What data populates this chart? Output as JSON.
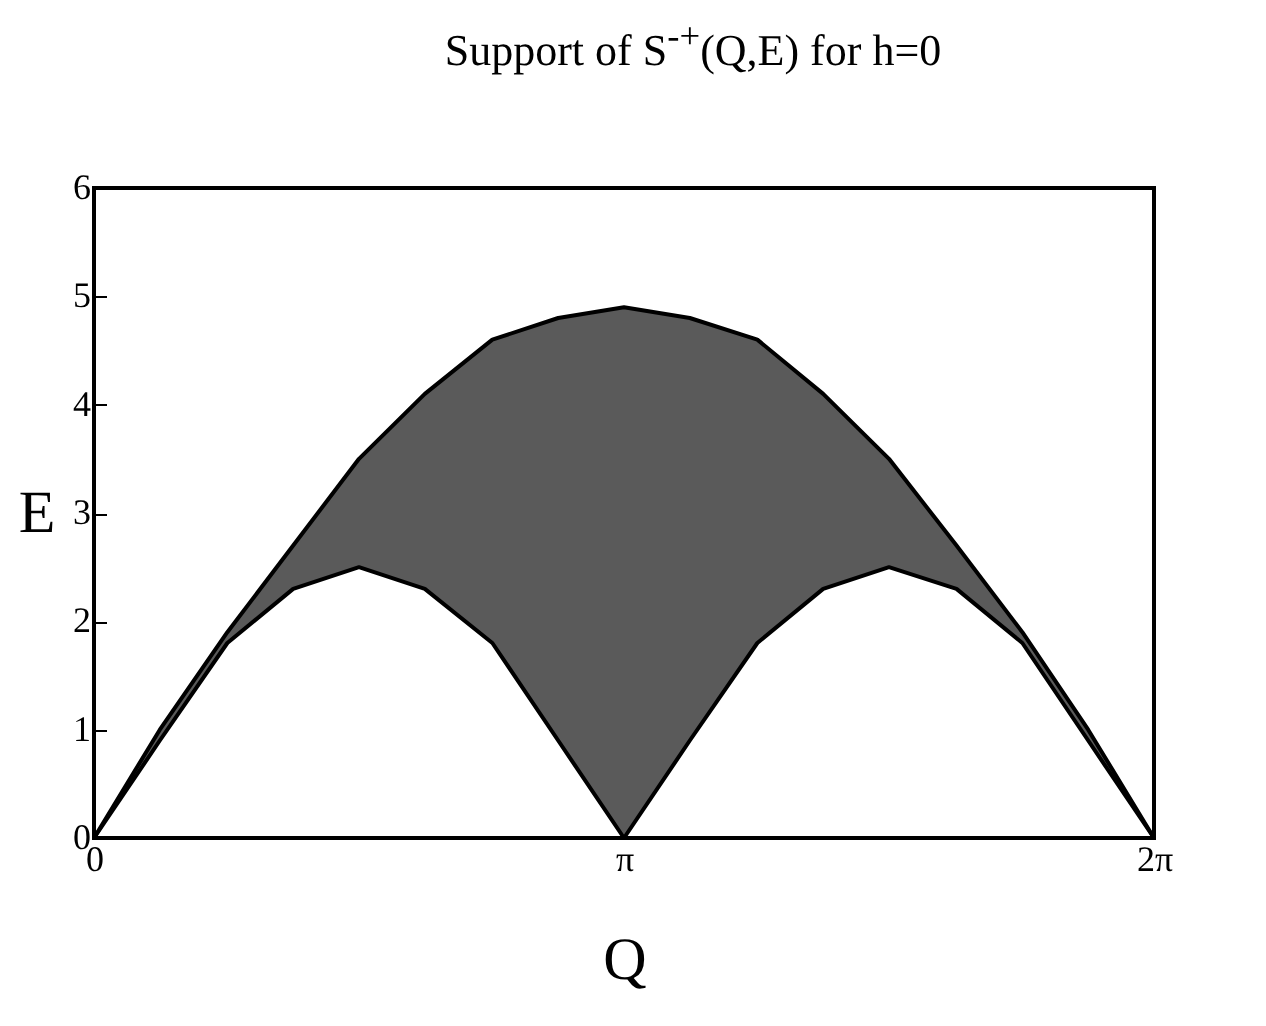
{
  "chart_data": {
    "type": "line",
    "title": "Support of S$^{-+}$(Q,E) for h=0",
    "xlabel": "Q",
    "ylabel": "E",
    "x": [
      0,
      0.39,
      0.79,
      1.18,
      1.57,
      1.96,
      2.36,
      2.75,
      3.14,
      3.53,
      3.93,
      4.32,
      4.71,
      5.11,
      5.5,
      5.89,
      6.28
    ],
    "series": [
      {
        "color": "#000000",
        "values": [
          0,
          1.0,
          1.9,
          2.7,
          3.5,
          4.1,
          4.6,
          4.8,
          4.9,
          4.8,
          4.6,
          4.1,
          3.5,
          2.7,
          1.9,
          1.0,
          0
        ],
        "lower": [
          0,
          0.9,
          1.8,
          2.3,
          2.5,
          2.3,
          1.8,
          0.9,
          0,
          0.9,
          1.8,
          2.3,
          2.5,
          2.3,
          1.8,
          0.9,
          0
        ],
        "upper": [
          0,
          1.0,
          1.9,
          2.7,
          3.5,
          4.1,
          4.6,
          4.8,
          4.9,
          4.8,
          4.6,
          4.1,
          3.5,
          2.7,
          1.9,
          1.0,
          0
        ]
      },
      {
        "color": "#000000",
        "values": [
          0,
          0.9,
          1.8,
          2.3,
          2.5,
          2.3,
          1.8,
          0.9,
          0,
          0.9,
          1.8,
          2.3,
          2.5,
          2.3,
          1.8,
          0.9,
          0
        ]
      }
    ],
    "xlim": [
      0,
      6.28
    ],
    "xticks": [
      0,
      {
        "value": 3.14,
        "label": "π"
      },
      {
        "value": 6.28,
        "label": "2π"
      }
    ],
    "ylim": [
      0,
      6
    ],
    "yticks": [
      0,
      1,
      2,
      3,
      4,
      5,
      6
    ],
    "grid": false
  }
}
